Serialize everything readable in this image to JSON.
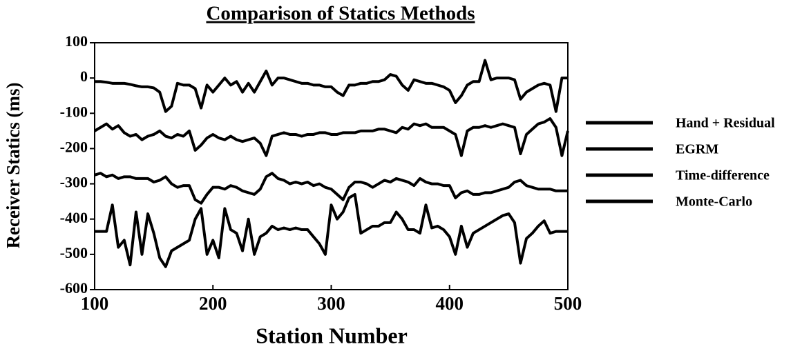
{
  "chart_data": {
    "type": "line",
    "title": "Comparison of Statics Methods",
    "xlabel": "Station Number",
    "ylabel": "Receiver Statics (ms)",
    "xlim": [
      100,
      500
    ],
    "xticks": [
      100,
      200,
      300,
      400,
      500
    ],
    "ylim": [
      -600,
      100
    ],
    "yticks": [
      -600,
      -500,
      -400,
      -300,
      -200,
      -100,
      0,
      100
    ],
    "x": [
      100,
      105,
      110,
      115,
      120,
      125,
      130,
      135,
      140,
      145,
      150,
      155,
      160,
      165,
      170,
      175,
      180,
      185,
      190,
      195,
      200,
      205,
      210,
      215,
      220,
      225,
      230,
      235,
      240,
      245,
      250,
      255,
      260,
      265,
      270,
      275,
      280,
      285,
      290,
      295,
      300,
      305,
      310,
      315,
      320,
      325,
      330,
      335,
      340,
      345,
      350,
      355,
      360,
      365,
      370,
      375,
      380,
      385,
      390,
      395,
      400,
      405,
      410,
      415,
      420,
      425,
      430,
      435,
      440,
      445,
      450,
      455,
      460,
      465,
      470,
      475,
      480,
      485,
      490,
      495,
      500
    ],
    "series": [
      {
        "name": "Hand + Residual",
        "color": "#000000",
        "values": [
          -10,
          -10,
          -12,
          -15,
          -15,
          -15,
          -18,
          -22,
          -25,
          -25,
          -28,
          -40,
          -95,
          -80,
          -15,
          -20,
          -20,
          -30,
          -85,
          -20,
          -40,
          -20,
          0,
          -20,
          -10,
          -40,
          -15,
          -40,
          -10,
          20,
          -20,
          0,
          0,
          -5,
          -10,
          -15,
          -15,
          -20,
          -20,
          -25,
          -25,
          -40,
          -50,
          -20,
          -20,
          -15,
          -15,
          -10,
          -10,
          -5,
          10,
          5,
          -20,
          -35,
          -5,
          -10,
          -15,
          -15,
          -20,
          -25,
          -35,
          -70,
          -50,
          -20,
          -10,
          -10,
          50,
          -5,
          0,
          0,
          0,
          -5,
          -60,
          -40,
          -30,
          -20,
          -15,
          -20,
          -95,
          0,
          0
        ]
      },
      {
        "name": "EGRM",
        "color": "#000000",
        "values": [
          -150,
          -140,
          -130,
          -145,
          -135,
          -155,
          -165,
          -160,
          -175,
          -165,
          -160,
          -150,
          -165,
          -170,
          -160,
          -165,
          -150,
          -205,
          -190,
          -170,
          -160,
          -170,
          -175,
          -165,
          -175,
          -180,
          -175,
          -170,
          -185,
          -220,
          -165,
          -160,
          -155,
          -160,
          -160,
          -165,
          -160,
          -160,
          -155,
          -155,
          -160,
          -160,
          -155,
          -155,
          -155,
          -150,
          -150,
          -150,
          -145,
          -145,
          -150,
          -155,
          -140,
          -145,
          -130,
          -135,
          -130,
          -140,
          -140,
          -140,
          -150,
          -160,
          -220,
          -150,
          -140,
          -140,
          -135,
          -140,
          -135,
          -130,
          -135,
          -140,
          -215,
          -160,
          -145,
          -130,
          -125,
          -115,
          -140,
          -220,
          -150
        ]
      },
      {
        "name": "Time-difference",
        "color": "#000000",
        "values": [
          -275,
          -270,
          -280,
          -275,
          -285,
          -280,
          -280,
          -285,
          -285,
          -285,
          -295,
          -290,
          -280,
          -300,
          -310,
          -305,
          -305,
          -345,
          -355,
          -330,
          -310,
          -310,
          -315,
          -305,
          -310,
          -320,
          -325,
          -330,
          -315,
          -280,
          -270,
          -285,
          -290,
          -300,
          -295,
          -300,
          -295,
          -305,
          -300,
          -310,
          -315,
          -330,
          -345,
          -310,
          -295,
          -295,
          -300,
          -310,
          -300,
          -290,
          -295,
          -285,
          -290,
          -295,
          -305,
          -285,
          -295,
          -300,
          -300,
          -305,
          -305,
          -340,
          -325,
          -320,
          -330,
          -330,
          -325,
          -325,
          -320,
          -315,
          -310,
          -295,
          -290,
          -305,
          -310,
          -315,
          -315,
          -315,
          -320,
          -320,
          -320
        ]
      },
      {
        "name": "Monte-Carlo",
        "color": "#000000",
        "values": [
          -435,
          -435,
          -435,
          -360,
          -480,
          -460,
          -530,
          -380,
          -500,
          -385,
          -440,
          -510,
          -535,
          -490,
          -480,
          -470,
          -460,
          -400,
          -370,
          -500,
          -460,
          -510,
          -370,
          -430,
          -440,
          -490,
          -400,
          -500,
          -450,
          -440,
          -420,
          -430,
          -425,
          -430,
          -425,
          -430,
          -430,
          -450,
          -470,
          -500,
          -360,
          -400,
          -380,
          -340,
          -330,
          -440,
          -430,
          -420,
          -420,
          -410,
          -410,
          -380,
          -400,
          -430,
          -430,
          -440,
          -360,
          -425,
          -420,
          -430,
          -450,
          -500,
          -420,
          -480,
          -440,
          -430,
          -420,
          -410,
          -400,
          -390,
          -385,
          -410,
          -525,
          -455,
          -440,
          -420,
          -405,
          -440,
          -435,
          -435,
          -435
        ]
      }
    ]
  }
}
